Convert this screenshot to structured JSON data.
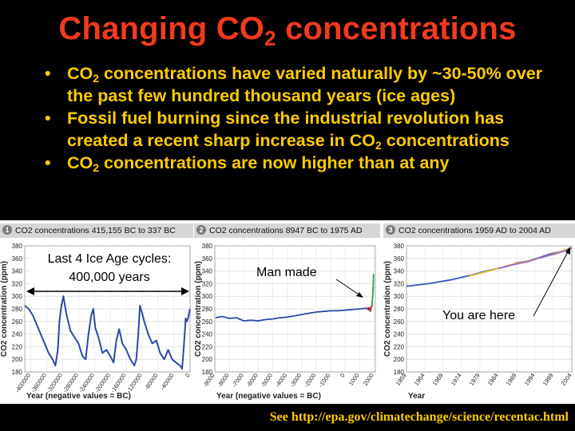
{
  "slide": {
    "title_main": "Changing CO",
    "title_sub": "2",
    "title_end": " concentrations",
    "bullet_dot": "•",
    "bullets": [
      {
        "a": "CO",
        "sub": "2",
        "b": " concentrations have varied naturally by ~30-50% over the past few hundred thousand years (ice ages)"
      },
      {
        "a": "Fossil fuel burning since the industrial revolution has created a recent sharp increase in CO",
        "sub": "2",
        "b": " concentrations"
      },
      {
        "a": "CO",
        "sub": "2",
        "b": " concentrations are now higher than at any"
      }
    ],
    "source_see": "See ",
    "source_url": "http://epa.gov/climatechange/science/recentac.html"
  },
  "colors": {
    "title": "#f23a1e",
    "bullets": "#ffcc00",
    "series_main": "#2b4aa8",
    "panel_header": "#d6d6d6"
  },
  "chart_data": [
    {
      "type": "line",
      "number": "1",
      "title": "CO2 concentrations 415,155 BC to 337 BC",
      "xlabel": "Year (negative values = BC)",
      "ylabel": "CO2 concentration (ppm)",
      "ylim": [
        180,
        380
      ],
      "yticks": [
        180,
        200,
        220,
        240,
        260,
        280,
        300,
        320,
        340,
        360,
        380
      ],
      "xlim": [
        -415000,
        0
      ],
      "xticks": [
        -400000,
        -360000,
        -320000,
        -280000,
        -240000,
        -200000,
        -160000,
        -120000,
        -80000,
        -40000,
        0
      ],
      "annotations": [
        "Last 4 Ice Age cycles:",
        "400,000 years"
      ],
      "series": [
        {
          "x": [
            -415000,
            -405000,
            -395000,
            -385000,
            -375000,
            -365000,
            -355000,
            -345000,
            -338000,
            -332000,
            -328000,
            -323000,
            -318000,
            -310000,
            -300000,
            -290000,
            -280000,
            -270000,
            -262000,
            -255000,
            -248000,
            -243000,
            -238000,
            -230000,
            -220000,
            -210000,
            -200000,
            -192000,
            -185000,
            -178000,
            -170000,
            -160000,
            -150000,
            -140000,
            -135000,
            -130000,
            -126000,
            -121000,
            -115000,
            -105000,
            -95000,
            -85000,
            -75000,
            -65000,
            -55000,
            -45000,
            -35000,
            -25000,
            -20000,
            -18000,
            -14000,
            -11000,
            -8000,
            -5000,
            -2000,
            -337
          ],
          "y": [
            285,
            280,
            270,
            255,
            240,
            225,
            210,
            200,
            190,
            215,
            260,
            285,
            300,
            270,
            245,
            235,
            225,
            205,
            200,
            240,
            270,
            280,
            250,
            235,
            210,
            215,
            205,
            195,
            230,
            248,
            225,
            215,
            200,
            190,
            200,
            240,
            285,
            275,
            260,
            240,
            225,
            230,
            210,
            200,
            215,
            200,
            195,
            190,
            185,
            200,
            235,
            265,
            260,
            265,
            275,
            280
          ]
        }
      ]
    },
    {
      "type": "line",
      "number": "2",
      "title": "CO2 concentrations 8947 BC to 1975 AD",
      "xlabel": "Year (negative values = BC)",
      "ylabel": "CO2 concentration (ppm)",
      "ylim": [
        180,
        380
      ],
      "yticks": [
        180,
        200,
        220,
        240,
        260,
        280,
        300,
        320,
        340,
        360,
        380
      ],
      "xlim": [
        -9000,
        2100
      ],
      "xticks": [
        -9000,
        -8000,
        -7000,
        -6000,
        -5000,
        -4000,
        -3000,
        -2000,
        -1000,
        0,
        1000,
        2000
      ],
      "annotations": [
        "Man made"
      ],
      "series": [
        {
          "x": [
            -8947,
            -8500,
            -8000,
            -7500,
            -7000,
            -6500,
            -6000,
            -5500,
            -5000,
            -4500,
            -4000,
            -3500,
            -3000,
            -2500,
            -2000,
            -1500,
            -1000,
            -500,
            0,
            500,
            1000,
            1500,
            1700,
            1800
          ],
          "y": [
            266,
            268,
            265,
            266,
            261,
            262,
            261,
            263,
            264,
            266,
            267,
            269,
            271,
            273,
            275,
            276,
            277,
            277,
            278,
            279,
            280,
            281,
            278,
            283
          ]
        },
        {
          "x": [
            1500,
            1650,
            1750,
            1800,
            1850,
            1900
          ],
          "y": [
            280,
            282,
            276,
            283,
            284,
            287
          ]
        },
        {
          "x": [
            1850,
            1900,
            1930,
            1950,
            1960,
            1975
          ],
          "y": [
            285,
            296,
            305,
            312,
            320,
            335
          ]
        }
      ]
    },
    {
      "type": "line",
      "number": "3",
      "title": "CO2 concentrations 1959 AD to 2004 AD",
      "xlabel": "Year",
      "ylabel": "CO2 concentration (ppm)",
      "ylim": [
        180,
        380
      ],
      "yticks": [
        180,
        200,
        220,
        240,
        260,
        280,
        300,
        320,
        340,
        360,
        380
      ],
      "xlim": [
        1959,
        2004
      ],
      "xticks": [
        1959,
        1964,
        1969,
        1974,
        1979,
        1984,
        1989,
        1994,
        1999,
        2004
      ],
      "annotations": [
        "You are here"
      ],
      "series": [
        {
          "x": [
            1959,
            1962,
            1965,
            1968,
            1971,
            1974,
            1977,
            1980,
            1983,
            1986,
            1989,
            1992,
            1995,
            1998,
            2001,
            2004
          ],
          "y": [
            316,
            318,
            320,
            323,
            326,
            330,
            334,
            339,
            343,
            347,
            353,
            356,
            361,
            367,
            371,
            377
          ]
        },
        {
          "x": [
            1976,
            1980,
            1984,
            1988,
            1992,
            1996,
            2000,
            2004
          ],
          "y": [
            332,
            338,
            344,
            351,
            356,
            362,
            369,
            377
          ]
        },
        {
          "x": [
            1984,
            1988,
            1992,
            1996,
            2000,
            2004
          ],
          "y": [
            344,
            350,
            355,
            362,
            368,
            376
          ]
        }
      ]
    }
  ]
}
